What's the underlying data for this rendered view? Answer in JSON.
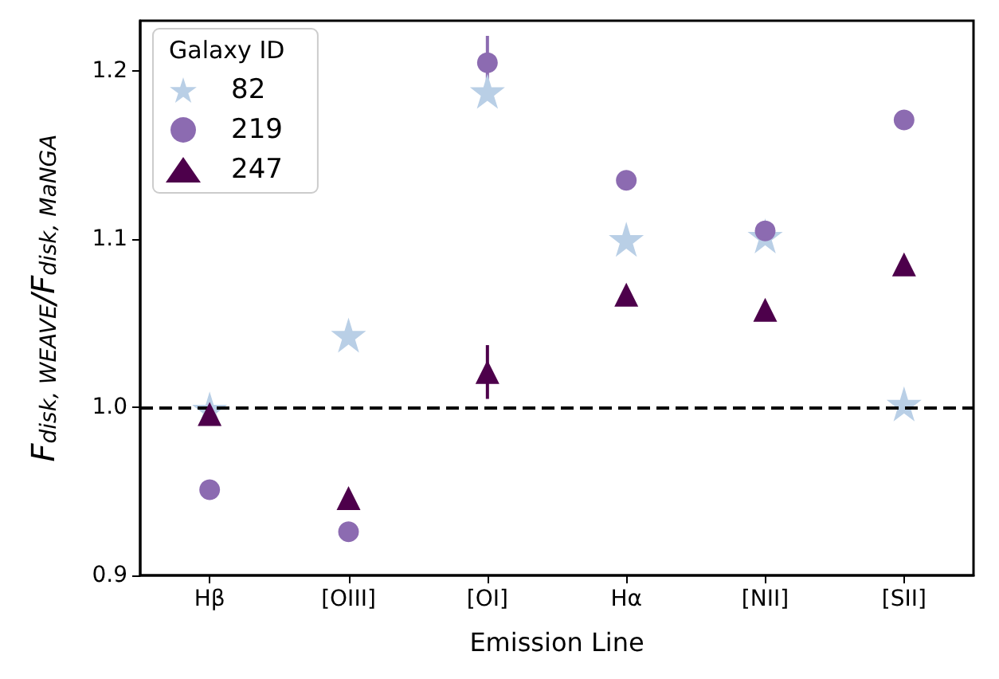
{
  "chart_data": {
    "type": "scatter",
    "xlabel": "Emission Line",
    "ylabel": "F$_{disk, WEAVE}$/F$_{disk, MaNGA}$",
    "legend_title": "Galaxy ID",
    "legend": "top left",
    "categories": [
      "Hβ",
      "[OIII]",
      "[OI]",
      "Hα",
      "[NII]",
      "[SII]"
    ],
    "series": [
      {
        "name": "82",
        "color": "#b9cfe6",
        "marker": "star",
        "values": [
          0.999,
          1.043,
          1.188,
          1.1,
          1.102,
          1.002
        ]
      },
      {
        "name": "219",
        "color": "#8c6bb1",
        "marker": "circle",
        "values": [
          0.951,
          0.926,
          1.205,
          1.135,
          1.105,
          1.171
        ],
        "errors": [
          null,
          null,
          0.016,
          null,
          null,
          null
        ]
      },
      {
        "name": "247",
        "color": "#4d004b",
        "marker": "triangle",
        "values": [
          0.996,
          0.946,
          1.021,
          1.067,
          1.058,
          1.085
        ],
        "errors": [
          null,
          null,
          0.016,
          null,
          null,
          null
        ]
      }
    ],
    "ylim": [
      0.9,
      1.23
    ],
    "yticks": [
      {
        "value": 0.9,
        "label": "0.9"
      },
      {
        "value": 1,
        "label": "1.0"
      },
      {
        "value": 1.1,
        "label": "1.1"
      },
      {
        "value": 1.2,
        "label": "1.2"
      }
    ],
    "ref_lines": [
      {
        "axis": "y",
        "value": 1.0,
        "color": "#000000",
        "line_style": "dashed"
      }
    ],
    "grid": false
  }
}
